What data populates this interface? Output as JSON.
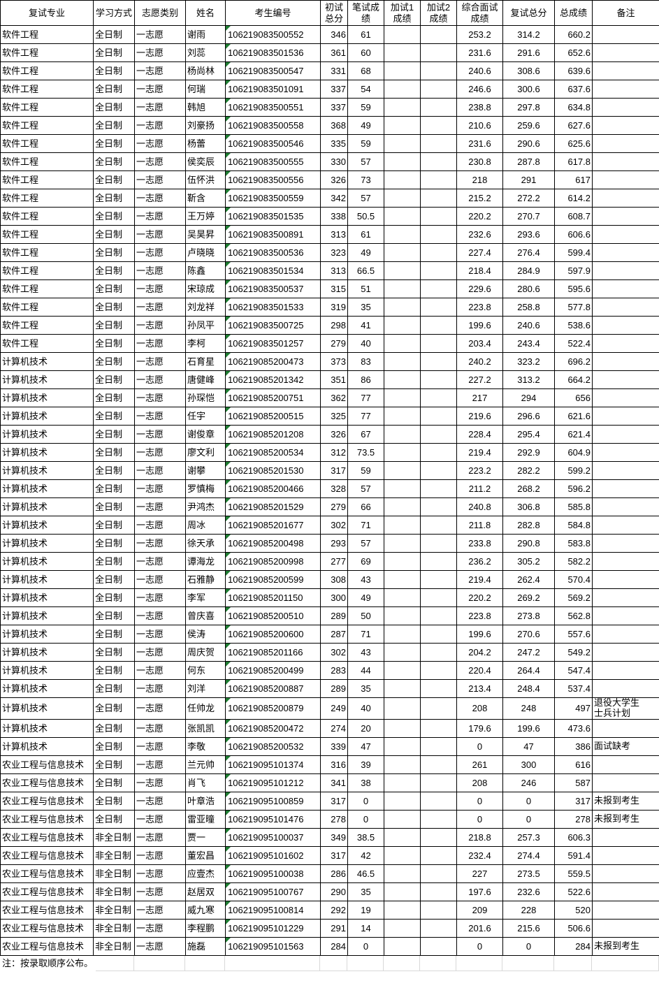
{
  "colors": {
    "table_border": "#000000",
    "grid_light": "#d8d8d8",
    "flag_green": "#1e7d32",
    "text": "#000000"
  },
  "flag_icon": "error-flag-triangle",
  "table": {
    "headers": [
      "复试专业",
      "学习方式",
      "志愿类别",
      "姓名",
      "考生编号",
      "初试\n总分",
      "笔试成\n绩",
      "加试1\n成绩",
      "加试2\n成绩",
      "综合面试\n成绩",
      "复试总分",
      "总成绩",
      "备注"
    ],
    "rows": [
      {
        "major": "软件工程",
        "mode": "全日制",
        "category": "一志愿",
        "name": "谢雨",
        "id": "106219083500552",
        "initial": "346",
        "written": "61",
        "extra1": "",
        "extra2": "",
        "interview": "253.2",
        "retest": "314.2",
        "total": "660.2",
        "remark": ""
      },
      {
        "major": "软件工程",
        "mode": "全日制",
        "category": "一志愿",
        "name": "刘蕊",
        "id": "106219083501536",
        "initial": "361",
        "written": "60",
        "extra1": "",
        "extra2": "",
        "interview": "231.6",
        "retest": "291.6",
        "total": "652.6",
        "remark": ""
      },
      {
        "major": "软件工程",
        "mode": "全日制",
        "category": "一志愿",
        "name": "杨尚林",
        "id": "106219083500547",
        "initial": "331",
        "written": "68",
        "extra1": "",
        "extra2": "",
        "interview": "240.6",
        "retest": "308.6",
        "total": "639.6",
        "remark": ""
      },
      {
        "major": "软件工程",
        "mode": "全日制",
        "category": "一志愿",
        "name": "何瑞",
        "id": "106219083501091",
        "initial": "337",
        "written": "54",
        "extra1": "",
        "extra2": "",
        "interview": "246.6",
        "retest": "300.6",
        "total": "637.6",
        "remark": ""
      },
      {
        "major": "软件工程",
        "mode": "全日制",
        "category": "一志愿",
        "name": "韩旭",
        "id": "106219083500551",
        "initial": "337",
        "written": "59",
        "extra1": "",
        "extra2": "",
        "interview": "238.8",
        "retest": "297.8",
        "total": "634.8",
        "remark": ""
      },
      {
        "major": "软件工程",
        "mode": "全日制",
        "category": "一志愿",
        "name": "刘豪扬",
        "id": "106219083500558",
        "initial": "368",
        "written": "49",
        "extra1": "",
        "extra2": "",
        "interview": "210.6",
        "retest": "259.6",
        "total": "627.6",
        "remark": ""
      },
      {
        "major": "软件工程",
        "mode": "全日制",
        "category": "一志愿",
        "name": "杨蕾",
        "id": "106219083500546",
        "initial": "335",
        "written": "59",
        "extra1": "",
        "extra2": "",
        "interview": "231.6",
        "retest": "290.6",
        "total": "625.6",
        "remark": ""
      },
      {
        "major": "软件工程",
        "mode": "全日制",
        "category": "一志愿",
        "name": "侯奕辰",
        "id": "106219083500555",
        "initial": "330",
        "written": "57",
        "extra1": "",
        "extra2": "",
        "interview": "230.8",
        "retest": "287.8",
        "total": "617.8",
        "remark": ""
      },
      {
        "major": "软件工程",
        "mode": "全日制",
        "category": "一志愿",
        "name": "伍怀洪",
        "id": "106219083500556",
        "initial": "326",
        "written": "73",
        "extra1": "",
        "extra2": "",
        "interview": "218",
        "retest": "291",
        "total": "617",
        "remark": ""
      },
      {
        "major": "软件工程",
        "mode": "全日制",
        "category": "一志愿",
        "name": "靳含",
        "id": "106219083500559",
        "initial": "342",
        "written": "57",
        "extra1": "",
        "extra2": "",
        "interview": "215.2",
        "retest": "272.2",
        "total": "614.2",
        "remark": ""
      },
      {
        "major": "软件工程",
        "mode": "全日制",
        "category": "一志愿",
        "name": "王万婷",
        "id": "106219083501535",
        "initial": "338",
        "written": "50.5",
        "extra1": "",
        "extra2": "",
        "interview": "220.2",
        "retest": "270.7",
        "total": "608.7",
        "remark": ""
      },
      {
        "major": "软件工程",
        "mode": "全日制",
        "category": "一志愿",
        "name": "吴昊昇",
        "id": "106219083500891",
        "initial": "313",
        "written": "61",
        "extra1": "",
        "extra2": "",
        "interview": "232.6",
        "retest": "293.6",
        "total": "606.6",
        "remark": ""
      },
      {
        "major": "软件工程",
        "mode": "全日制",
        "category": "一志愿",
        "name": "卢晓晓",
        "id": "106219083500536",
        "initial": "323",
        "written": "49",
        "extra1": "",
        "extra2": "",
        "interview": "227.4",
        "retest": "276.4",
        "total": "599.4",
        "remark": ""
      },
      {
        "major": "软件工程",
        "mode": "全日制",
        "category": "一志愿",
        "name": "陈鑫",
        "id": "106219083501534",
        "initial": "313",
        "written": "66.5",
        "extra1": "",
        "extra2": "",
        "interview": "218.4",
        "retest": "284.9",
        "total": "597.9",
        "remark": ""
      },
      {
        "major": "软件工程",
        "mode": "全日制",
        "category": "一志愿",
        "name": "宋琼成",
        "id": "106219083500537",
        "initial": "315",
        "written": "51",
        "extra1": "",
        "extra2": "",
        "interview": "229.6",
        "retest": "280.6",
        "total": "595.6",
        "remark": ""
      },
      {
        "major": "软件工程",
        "mode": "全日制",
        "category": "一志愿",
        "name": "刘龙祥",
        "id": "106219083501533",
        "initial": "319",
        "written": "35",
        "extra1": "",
        "extra2": "",
        "interview": "223.8",
        "retest": "258.8",
        "total": "577.8",
        "remark": ""
      },
      {
        "major": "软件工程",
        "mode": "全日制",
        "category": "一志愿",
        "name": "孙凤平",
        "id": "106219083500725",
        "initial": "298",
        "written": "41",
        "extra1": "",
        "extra2": "",
        "interview": "199.6",
        "retest": "240.6",
        "total": "538.6",
        "remark": ""
      },
      {
        "major": "软件工程",
        "mode": "全日制",
        "category": "一志愿",
        "name": "李柯",
        "id": "106219083501257",
        "initial": "279",
        "written": "40",
        "extra1": "",
        "extra2": "",
        "interview": "203.4",
        "retest": "243.4",
        "total": "522.4",
        "remark": ""
      },
      {
        "major": "计算机技术",
        "mode": "全日制",
        "category": "一志愿",
        "name": "石育星",
        "id": "106219085200473",
        "initial": "373",
        "written": "83",
        "extra1": "",
        "extra2": "",
        "interview": "240.2",
        "retest": "323.2",
        "total": "696.2",
        "remark": ""
      },
      {
        "major": "计算机技术",
        "mode": "全日制",
        "category": "一志愿",
        "name": "唐健峰",
        "id": "106219085201342",
        "initial": "351",
        "written": "86",
        "extra1": "",
        "extra2": "",
        "interview": "227.2",
        "retest": "313.2",
        "total": "664.2",
        "remark": ""
      },
      {
        "major": "计算机技术",
        "mode": "全日制",
        "category": "一志愿",
        "name": "孙琛恺",
        "id": "106219085200751",
        "initial": "362",
        "written": "77",
        "extra1": "",
        "extra2": "",
        "interview": "217",
        "retest": "294",
        "total": "656",
        "remark": ""
      },
      {
        "major": "计算机技术",
        "mode": "全日制",
        "category": "一志愿",
        "name": "任宇",
        "id": "106219085200515",
        "initial": "325",
        "written": "77",
        "extra1": "",
        "extra2": "",
        "interview": "219.6",
        "retest": "296.6",
        "total": "621.6",
        "remark": ""
      },
      {
        "major": "计算机技术",
        "mode": "全日制",
        "category": "一志愿",
        "name": "谢俊章",
        "id": "106219085201208",
        "initial": "326",
        "written": "67",
        "extra1": "",
        "extra2": "",
        "interview": "228.4",
        "retest": "295.4",
        "total": "621.4",
        "remark": ""
      },
      {
        "major": "计算机技术",
        "mode": "全日制",
        "category": "一志愿",
        "name": "廖文利",
        "id": "106219085200534",
        "initial": "312",
        "written": "73.5",
        "extra1": "",
        "extra2": "",
        "interview": "219.4",
        "retest": "292.9",
        "total": "604.9",
        "remark": ""
      },
      {
        "major": "计算机技术",
        "mode": "全日制",
        "category": "一志愿",
        "name": "谢攀",
        "id": "106219085201530",
        "initial": "317",
        "written": "59",
        "extra1": "",
        "extra2": "",
        "interview": "223.2",
        "retest": "282.2",
        "total": "599.2",
        "remark": ""
      },
      {
        "major": "计算机技术",
        "mode": "全日制",
        "category": "一志愿",
        "name": "罗慎梅",
        "id": "106219085200466",
        "initial": "328",
        "written": "57",
        "extra1": "",
        "extra2": "",
        "interview": "211.2",
        "retest": "268.2",
        "total": "596.2",
        "remark": ""
      },
      {
        "major": "计算机技术",
        "mode": "全日制",
        "category": "一志愿",
        "name": "尹鸿杰",
        "id": "106219085201529",
        "initial": "279",
        "written": "66",
        "extra1": "",
        "extra2": "",
        "interview": "240.8",
        "retest": "306.8",
        "total": "585.8",
        "remark": ""
      },
      {
        "major": "计算机技术",
        "mode": "全日制",
        "category": "一志愿",
        "name": "周冰",
        "id": "106219085201677",
        "initial": "302",
        "written": "71",
        "extra1": "",
        "extra2": "",
        "interview": "211.8",
        "retest": "282.8",
        "total": "584.8",
        "remark": ""
      },
      {
        "major": "计算机技术",
        "mode": "全日制",
        "category": "一志愿",
        "name": "徐天承",
        "id": "106219085200498",
        "initial": "293",
        "written": "57",
        "extra1": "",
        "extra2": "",
        "interview": "233.8",
        "retest": "290.8",
        "total": "583.8",
        "remark": ""
      },
      {
        "major": "计算机技术",
        "mode": "全日制",
        "category": "一志愿",
        "name": "谭海龙",
        "id": "106219085200998",
        "initial": "277",
        "written": "69",
        "extra1": "",
        "extra2": "",
        "interview": "236.2",
        "retest": "305.2",
        "total": "582.2",
        "remark": ""
      },
      {
        "major": "计算机技术",
        "mode": "全日制",
        "category": "一志愿",
        "name": "石雅静",
        "id": "106219085200599",
        "initial": "308",
        "written": "43",
        "extra1": "",
        "extra2": "",
        "interview": "219.4",
        "retest": "262.4",
        "total": "570.4",
        "remark": ""
      },
      {
        "major": "计算机技术",
        "mode": "全日制",
        "category": "一志愿",
        "name": "李军",
        "id": "106219085201150",
        "initial": "300",
        "written": "49",
        "extra1": "",
        "extra2": "",
        "interview": "220.2",
        "retest": "269.2",
        "total": "569.2",
        "remark": ""
      },
      {
        "major": "计算机技术",
        "mode": "全日制",
        "category": "一志愿",
        "name": "曾庆喜",
        "id": "106219085200510",
        "initial": "289",
        "written": "50",
        "extra1": "",
        "extra2": "",
        "interview": "223.8",
        "retest": "273.8",
        "total": "562.8",
        "remark": ""
      },
      {
        "major": "计算机技术",
        "mode": "全日制",
        "category": "一志愿",
        "name": "侯涛",
        "id": "106219085200600",
        "initial": "287",
        "written": "71",
        "extra1": "",
        "extra2": "",
        "interview": "199.6",
        "retest": "270.6",
        "total": "557.6",
        "remark": ""
      },
      {
        "major": "计算机技术",
        "mode": "全日制",
        "category": "一志愿",
        "name": "周庆贺",
        "id": "106219085201166",
        "initial": "302",
        "written": "43",
        "extra1": "",
        "extra2": "",
        "interview": "204.2",
        "retest": "247.2",
        "total": "549.2",
        "remark": ""
      },
      {
        "major": "计算机技术",
        "mode": "全日制",
        "category": "一志愿",
        "name": "何东",
        "id": "106219085200499",
        "initial": "283",
        "written": "44",
        "extra1": "",
        "extra2": "",
        "interview": "220.4",
        "retest": "264.4",
        "total": "547.4",
        "remark": ""
      },
      {
        "major": "计算机技术",
        "mode": "全日制",
        "category": "一志愿",
        "name": "刘洋",
        "id": "106219085200887",
        "initial": "289",
        "written": "35",
        "extra1": "",
        "extra2": "",
        "interview": "213.4",
        "retest": "248.4",
        "total": "537.4",
        "remark": ""
      },
      {
        "major": "计算机技术",
        "mode": "全日制",
        "category": "一志愿",
        "name": "任帅龙",
        "id": "106219085200879",
        "initial": "249",
        "written": "40",
        "extra1": "",
        "extra2": "",
        "interview": "208",
        "retest": "248",
        "total": "497",
        "remark": "退役大学生\n士兵计划"
      },
      {
        "major": "计算机技术",
        "mode": "全日制",
        "category": "一志愿",
        "name": "张凯凯",
        "id": "106219085200472",
        "initial": "274",
        "written": "20",
        "extra1": "",
        "extra2": "",
        "interview": "179.6",
        "retest": "199.6",
        "total": "473.6",
        "remark": ""
      },
      {
        "major": "计算机技术",
        "mode": "全日制",
        "category": "一志愿",
        "name": "李敬",
        "id": "106219085200532",
        "initial": "339",
        "written": "47",
        "extra1": "",
        "extra2": "",
        "interview": "0",
        "retest": "47",
        "total": "386",
        "remark": "面试缺考"
      },
      {
        "major": "农业工程与信息技术",
        "mode": "全日制",
        "category": "一志愿",
        "name": "兰元帅",
        "id": "106219095101374",
        "initial": "316",
        "written": "39",
        "extra1": "",
        "extra2": "",
        "interview": "261",
        "retest": "300",
        "total": "616",
        "remark": ""
      },
      {
        "major": "农业工程与信息技术",
        "mode": "全日制",
        "category": "一志愿",
        "name": "肖飞",
        "id": "106219095101212",
        "initial": "341",
        "written": "38",
        "extra1": "",
        "extra2": "",
        "interview": "208",
        "retest": "246",
        "total": "587",
        "remark": ""
      },
      {
        "major": "农业工程与信息技术",
        "mode": "全日制",
        "category": "一志愿",
        "name": "叶章浩",
        "id": "106219095100859",
        "initial": "317",
        "written": "0",
        "extra1": "",
        "extra2": "",
        "interview": "0",
        "retest": "0",
        "total": "317",
        "remark": "未报到考生"
      },
      {
        "major": "农业工程与信息技术",
        "mode": "全日制",
        "category": "一志愿",
        "name": "雷亚曈",
        "id": "106219095101476",
        "initial": "278",
        "written": "0",
        "extra1": "",
        "extra2": "",
        "interview": "0",
        "retest": "0",
        "total": "278",
        "remark": "未报到考生"
      },
      {
        "major": "农业工程与信息技术",
        "mode": "非全日制",
        "category": "一志愿",
        "name": "贾一",
        "id": "106219095100037",
        "initial": "349",
        "written": "38.5",
        "extra1": "",
        "extra2": "",
        "interview": "218.8",
        "retest": "257.3",
        "total": "606.3",
        "remark": ""
      },
      {
        "major": "农业工程与信息技术",
        "mode": "非全日制",
        "category": "一志愿",
        "name": "董宏昌",
        "id": "106219095101602",
        "initial": "317",
        "written": "42",
        "extra1": "",
        "extra2": "",
        "interview": "232.4",
        "retest": "274.4",
        "total": "591.4",
        "remark": ""
      },
      {
        "major": "农业工程与信息技术",
        "mode": "非全日制",
        "category": "一志愿",
        "name": "应壹杰",
        "id": "106219095100038",
        "initial": "286",
        "written": "46.5",
        "extra1": "",
        "extra2": "",
        "interview": "227",
        "retest": "273.5",
        "total": "559.5",
        "remark": ""
      },
      {
        "major": "农业工程与信息技术",
        "mode": "非全日制",
        "category": "一志愿",
        "name": "赵居双",
        "id": "106219095100767",
        "initial": "290",
        "written": "35",
        "extra1": "",
        "extra2": "",
        "interview": "197.6",
        "retest": "232.6",
        "total": "522.6",
        "remark": ""
      },
      {
        "major": "农业工程与信息技术",
        "mode": "非全日制",
        "category": "一志愿",
        "name": "威九寒",
        "id": "106219095100814",
        "initial": "292",
        "written": "19",
        "extra1": "",
        "extra2": "",
        "interview": "209",
        "retest": "228",
        "total": "520",
        "remark": ""
      },
      {
        "major": "农业工程与信息技术",
        "mode": "非全日制",
        "category": "一志愿",
        "name": "李程鹏",
        "id": "106219095101229",
        "initial": "291",
        "written": "14",
        "extra1": "",
        "extra2": "",
        "interview": "201.6",
        "retest": "215.6",
        "total": "506.6",
        "remark": ""
      },
      {
        "major": "农业工程与信息技术",
        "mode": "非全日制",
        "category": "一志愿",
        "name": "施磊",
        "id": "106219095101563",
        "initial": "284",
        "written": "0",
        "extra1": "",
        "extra2": "",
        "interview": "0",
        "retest": "0",
        "total": "284",
        "remark": "未报到考生"
      }
    ]
  },
  "footer": {
    "note": "注：按录取顺序公布。"
  }
}
